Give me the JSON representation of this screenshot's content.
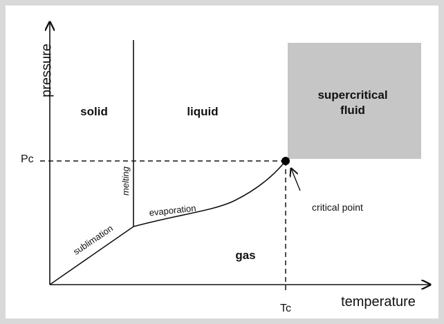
{
  "axes": {
    "y_label": "pressure",
    "x_label": "temperature",
    "pressure_mark": "Pc",
    "temperature_mark": "Tc"
  },
  "regions": {
    "solid": "solid",
    "liquid": "liquid",
    "gas": "gas",
    "supercritical": [
      "supercritical",
      "fluid"
    ]
  },
  "curves": {
    "melting": "melting",
    "evaporation": "evaporation",
    "sublimation": "sublimation"
  },
  "annotation": "critical point"
}
